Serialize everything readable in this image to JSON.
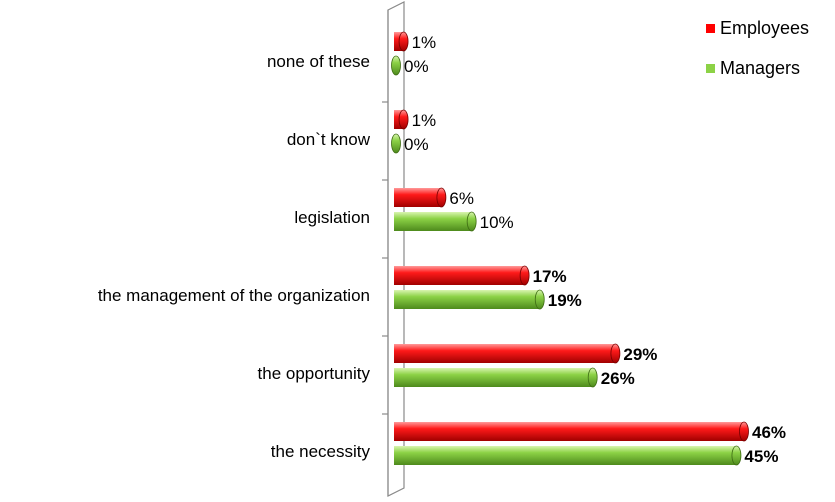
{
  "chart_data": {
    "type": "bar",
    "orientation": "horizontal",
    "categories": [
      "none of these",
      "don`t know",
      "legislation",
      "the management of the organization",
      "the opportunity",
      "the necessity"
    ],
    "series": [
      {
        "name": "Employees",
        "values": [
          1,
          1,
          6,
          17,
          29,
          46
        ],
        "labels": [
          "1%",
          "1%",
          "6%",
          "17%",
          "29%",
          "46%"
        ],
        "color": "#ff0000"
      },
      {
        "name": "Managers",
        "values": [
          0,
          0,
          10,
          19,
          26,
          45
        ],
        "labels": [
          "0%",
          "0%",
          "10%",
          "19%",
          "26%",
          "45%"
        ],
        "color": "#8cd246"
      }
    ],
    "value_unit": "%",
    "xlim": [
      0,
      50
    ],
    "grid": false,
    "legend_position": "top-right",
    "bar_style": "3d-cylinder"
  }
}
